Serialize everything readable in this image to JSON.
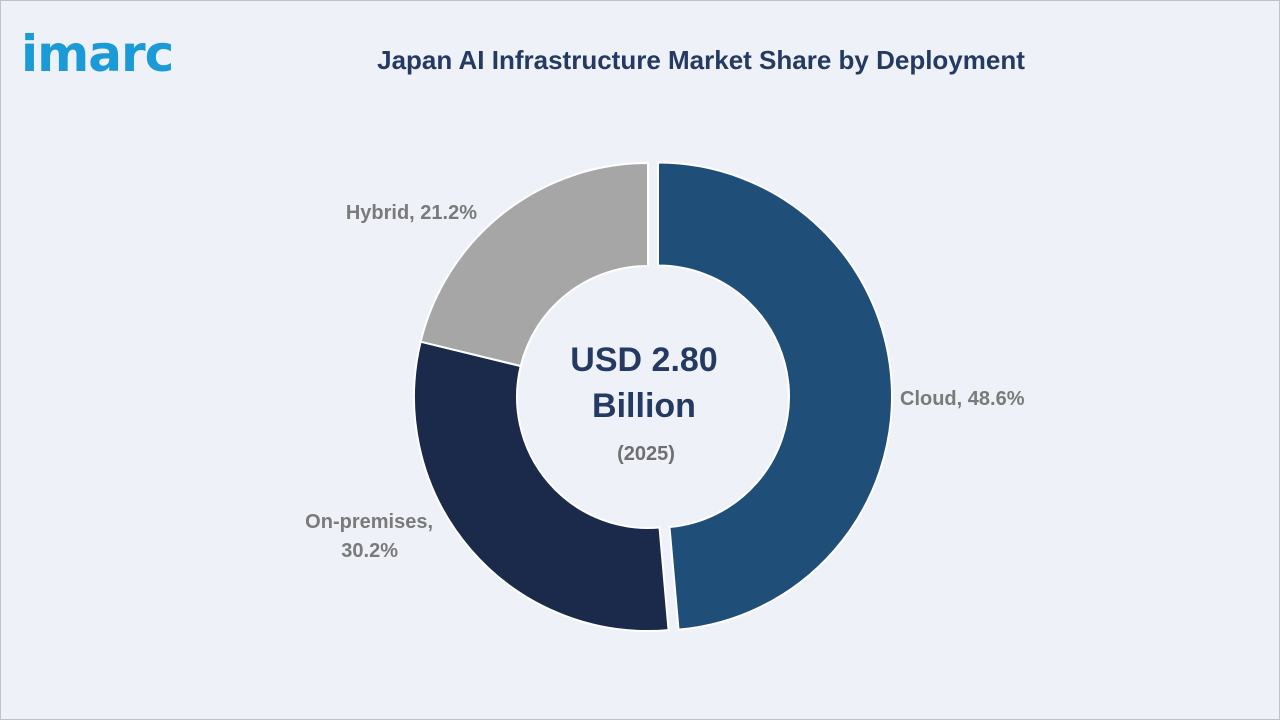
{
  "brand": {
    "logo_text": "imarc",
    "logo_color": "#1a9ad6"
  },
  "chart_data": {
    "type": "pie",
    "variant": "donut",
    "title": "Japan AI Infrastructure Market Share by Deployment",
    "center_text": {
      "line1": "USD 2.80",
      "line2": "Billion",
      "line3": "(2025)"
    },
    "unit": "%",
    "slices": [
      {
        "label": "Cloud",
        "value": 48.6,
        "display": "Cloud, 48.6%",
        "color": "#1f4e79",
        "exploded": true
      },
      {
        "label": "On-premises",
        "value": 30.2,
        "display_lines": [
          "On-premises,",
          "30.2%"
        ],
        "color": "#1b2a4a",
        "exploded": false
      },
      {
        "label": "Hybrid",
        "value": 21.2,
        "display": "Hybrid, 21.2%",
        "color": "#a6a6a6",
        "exploded": false
      }
    ]
  }
}
